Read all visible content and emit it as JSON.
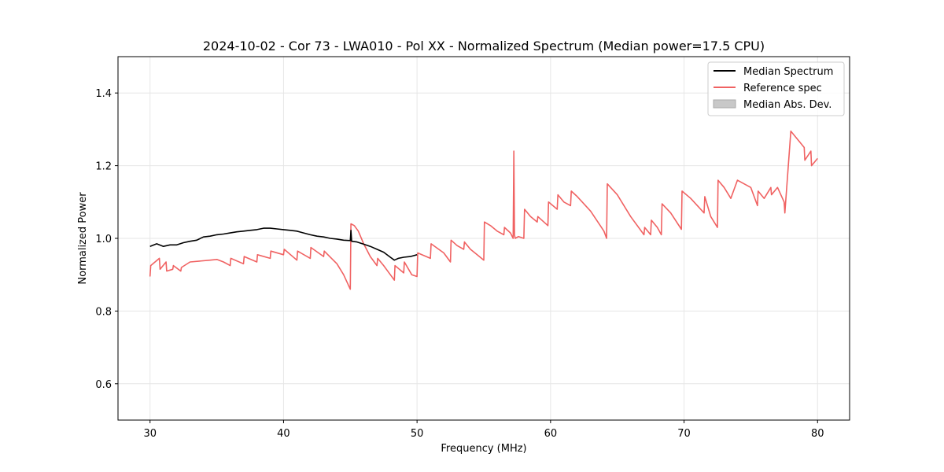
{
  "chart_data": {
    "type": "line",
    "title": "2024-10-02 - Cor 73 - LWA010 - Pol XX - Normalized Spectrum (Median power=17.5 CPU)",
    "xlabel": "Frequency (MHz)",
    "ylabel": "Normalized Power",
    "xlim": [
      27.6,
      82.4
    ],
    "ylim": [
      0.5,
      1.5
    ],
    "xticks": [
      30,
      40,
      50,
      60,
      70,
      80
    ],
    "yticks": [
      0.6,
      0.8,
      1.0,
      1.2,
      1.4
    ],
    "xtick_labels": [
      "30",
      "40",
      "50",
      "60",
      "70",
      "80"
    ],
    "ytick_labels": [
      "0.6",
      "0.8",
      "1.0",
      "1.2",
      "1.4"
    ],
    "grid": true,
    "legend_position": "top-right",
    "legend": [
      {
        "label": "Median Spectrum",
        "kind": "line",
        "color": "#000000"
      },
      {
        "label": "Reference spec",
        "kind": "line",
        "color": "#f06262"
      },
      {
        "label": "Median Abs. Dev.",
        "kind": "patch",
        "color": "#c8c8c8"
      }
    ],
    "series": [
      {
        "name": "Median Spectrum",
        "color": "#000000",
        "x": [
          30.0,
          30.5,
          31.0,
          31.5,
          32.0,
          32.5,
          33.0,
          33.5,
          34.0,
          34.5,
          35.0,
          35.5,
          36.0,
          36.5,
          37.0,
          37.5,
          38.0,
          38.5,
          39.0,
          39.5,
          40.0,
          40.5,
          41.0,
          41.5,
          42.0,
          42.5,
          43.0,
          43.5,
          44.0,
          44.5,
          45.0,
          45.05,
          45.1,
          45.5,
          46.0,
          46.5,
          47.0,
          47.5,
          48.0,
          48.3,
          48.6,
          49.0,
          49.5,
          50.0
        ],
        "y": [
          0.978,
          0.985,
          0.978,
          0.982,
          0.982,
          0.988,
          0.992,
          0.995,
          1.004,
          1.006,
          1.01,
          1.012,
          1.015,
          1.018,
          1.02,
          1.022,
          1.024,
          1.028,
          1.028,
          1.026,
          1.024,
          1.022,
          1.02,
          1.015,
          1.01,
          1.006,
          1.004,
          1.0,
          0.998,
          0.995,
          0.994,
          1.022,
          0.992,
          0.99,
          0.984,
          0.978,
          0.97,
          0.962,
          0.948,
          0.94,
          0.945,
          0.948,
          0.95,
          0.955
        ]
      },
      {
        "name": "Reference spec",
        "color": "#f06262",
        "x": [
          30.0,
          30.05,
          30.7,
          30.75,
          31.2,
          31.25,
          31.7,
          31.75,
          32.3,
          32.35,
          33.0,
          34.5,
          35.0,
          35.5,
          36.0,
          36.05,
          37.0,
          37.05,
          38.0,
          38.05,
          39.0,
          39.05,
          40.0,
          40.05,
          41.0,
          41.05,
          42.0,
          42.05,
          43.0,
          43.05,
          44.0,
          44.5,
          45.0,
          45.05,
          45.3,
          45.6,
          46.0,
          46.5,
          47.0,
          47.05,
          47.5,
          48.0,
          48.3,
          48.35,
          49.0,
          49.05,
          49.6,
          50.0,
          50.05,
          51.0,
          51.05,
          52.0,
          52.5,
          52.55,
          53.0,
          53.5,
          53.55,
          54.0,
          54.5,
          55.0,
          55.05,
          55.5,
          56.0,
          56.5,
          56.55,
          57.0,
          57.2,
          57.25,
          57.3,
          57.35,
          57.6,
          58.0,
          58.05,
          58.5,
          59.0,
          59.05,
          59.8,
          59.85,
          60.5,
          60.55,
          61.0,
          61.5,
          61.55,
          62.0,
          63.0,
          64.0,
          64.2,
          64.25,
          65.0,
          66.0,
          67.0,
          67.05,
          67.5,
          67.55,
          68.0,
          68.3,
          68.35,
          69.0,
          69.8,
          69.85,
          70.5,
          71.0,
          71.5,
          71.55,
          72.0,
          72.5,
          72.55,
          73.0,
          73.5,
          74.0,
          75.0,
          75.5,
          75.55,
          76.0,
          76.5,
          76.55,
          77.0,
          77.5,
          77.55,
          78.0,
          79.0,
          79.05,
          79.5,
          79.55,
          80.0
        ],
        "y": [
          0.895,
          0.925,
          0.945,
          0.915,
          0.935,
          0.91,
          0.915,
          0.925,
          0.91,
          0.92,
          0.935,
          0.94,
          0.942,
          0.935,
          0.925,
          0.945,
          0.93,
          0.95,
          0.935,
          0.955,
          0.945,
          0.965,
          0.955,
          0.97,
          0.94,
          0.965,
          0.945,
          0.975,
          0.95,
          0.965,
          0.93,
          0.9,
          0.86,
          1.04,
          1.035,
          1.02,
          0.985,
          0.95,
          0.925,
          0.945,
          0.925,
          0.9,
          0.885,
          0.925,
          0.905,
          0.935,
          0.9,
          0.895,
          0.96,
          0.945,
          0.985,
          0.96,
          0.935,
          0.995,
          0.98,
          0.97,
          0.99,
          0.97,
          0.955,
          0.94,
          1.045,
          1.035,
          1.02,
          1.01,
          1.03,
          1.015,
          1.0,
          1.24,
          1.01,
          1.0,
          1.005,
          1.0,
          1.08,
          1.06,
          1.045,
          1.06,
          1.035,
          1.1,
          1.08,
          1.12,
          1.1,
          1.09,
          1.13,
          1.115,
          1.075,
          1.02,
          1.0,
          1.15,
          1.12,
          1.06,
          1.01,
          1.03,
          1.01,
          1.05,
          1.03,
          1.01,
          1.095,
          1.07,
          1.025,
          1.13,
          1.11,
          1.09,
          1.07,
          1.115,
          1.06,
          1.03,
          1.16,
          1.14,
          1.11,
          1.16,
          1.14,
          1.09,
          1.13,
          1.11,
          1.14,
          1.12,
          1.14,
          1.1,
          1.07,
          1.295,
          1.25,
          1.215,
          1.24,
          1.2,
          1.22
        ]
      }
    ]
  }
}
